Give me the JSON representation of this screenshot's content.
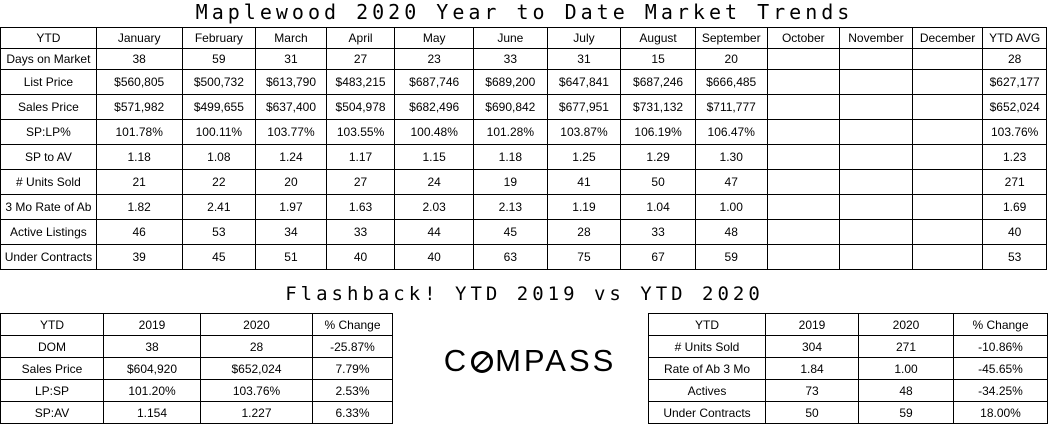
{
  "title": "Maplewood 2020 Year to Date Market Trends",
  "main_table": {
    "headers": [
      "YTD",
      "January",
      "February",
      "March",
      "April",
      "May",
      "June",
      "July",
      "August",
      "September",
      "October",
      "November",
      "December",
      "YTD AVG"
    ],
    "rows": [
      {
        "label": "Days on Market",
        "values": [
          "38",
          "59",
          "31",
          "27",
          "23",
          "33",
          "31",
          "15",
          "20",
          "",
          "",
          "",
          "28"
        ]
      },
      {
        "label": "List Price",
        "values": [
          "$560,805",
          "$500,732",
          "$613,790",
          "$483,215",
          "$687,746",
          "$689,200",
          "$647,841",
          "$687,246",
          "$666,485",
          "",
          "",
          "",
          "$627,177"
        ]
      },
      {
        "label": "Sales Price",
        "values": [
          "$571,982",
          "$499,655",
          "$637,400",
          "$504,978",
          "$682,496",
          "$690,842",
          "$677,951",
          "$731,132",
          "$711,777",
          "",
          "",
          "",
          "$652,024"
        ]
      },
      {
        "label": "SP:LP%",
        "values": [
          "101.78%",
          "100.11%",
          "103.77%",
          "103.55%",
          "100.48%",
          "101.28%",
          "103.87%",
          "106.19%",
          "106.47%",
          "",
          "",
          "",
          "103.76%"
        ]
      },
      {
        "label": "SP to AV",
        "values": [
          "1.18",
          "1.08",
          "1.24",
          "1.17",
          "1.15",
          "1.18",
          "1.25",
          "1.29",
          "1.30",
          "",
          "",
          "",
          "1.23"
        ]
      },
      {
        "label": "# Units Sold",
        "values": [
          "21",
          "22",
          "20",
          "27",
          "24",
          "19",
          "41",
          "50",
          "47",
          "",
          "",
          "",
          "271"
        ]
      },
      {
        "label": "3 Mo Rate of Ab",
        "values": [
          "1.82",
          "2.41",
          "1.97",
          "1.63",
          "2.03",
          "2.13",
          "1.19",
          "1.04",
          "1.00",
          "",
          "",
          "",
          "1.69"
        ]
      },
      {
        "label": "Active Listings",
        "values": [
          "46",
          "53",
          "34",
          "33",
          "44",
          "45",
          "28",
          "33",
          "48",
          "",
          "",
          "",
          "40"
        ]
      },
      {
        "label": "Under Contracts",
        "values": [
          "39",
          "45",
          "51",
          "40",
          "40",
          "63",
          "75",
          "67",
          "59",
          "",
          "",
          "",
          "53"
        ]
      }
    ]
  },
  "subtitle": "Flashback! YTD 2019 vs YTD 2020",
  "left_table": {
    "headers": [
      "YTD",
      "2019",
      "2020",
      "% Change"
    ],
    "rows": [
      [
        "DOM",
        "38",
        "28",
        "-25.87%"
      ],
      [
        "Sales Price",
        "$604,920",
        "$652,024",
        "7.79%"
      ],
      [
        "LP:SP",
        "101.20%",
        "103.76%",
        "2.53%"
      ],
      [
        "SP:AV",
        "1.154",
        "1.227",
        "6.33%"
      ]
    ]
  },
  "right_table": {
    "headers": [
      "YTD",
      "2019",
      "2020",
      "% Change"
    ],
    "rows": [
      [
        "# Units Sold",
        "304",
        "271",
        "-10.86%"
      ],
      [
        "Rate of Ab 3 Mo",
        "1.84",
        "1.00",
        "-45.65%"
      ],
      [
        "Actives",
        "73",
        "48",
        "-34.25%"
      ],
      [
        "Under Contracts",
        "50",
        "59",
        "18.00%"
      ]
    ]
  },
  "logo": {
    "text": "COMPASS",
    "icon": "compass-o-icon"
  }
}
